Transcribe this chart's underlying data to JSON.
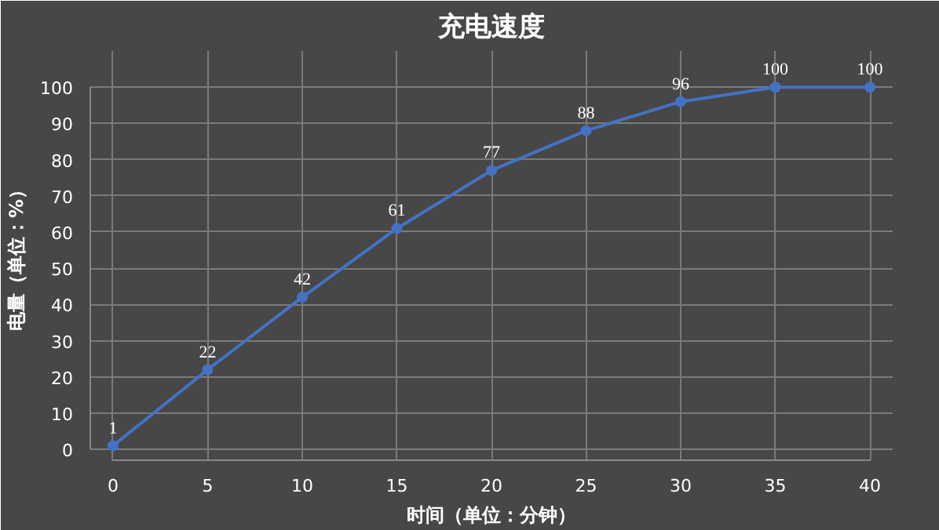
{
  "chart_data": {
    "type": "line",
    "title": "充电速度",
    "xlabel": "时间（单位：分钟）",
    "ylabel": "电量（单位：%）",
    "x": [
      0,
      5,
      10,
      15,
      20,
      25,
      30,
      35,
      40
    ],
    "series": [
      {
        "color": "#4472c4",
        "values": [
          1,
          22,
          42,
          61,
          77,
          88,
          96,
          100,
          100
        ]
      }
    ],
    "xlim": [
      0,
      40
    ],
    "xticks": [
      0,
      5,
      10,
      15,
      20,
      25,
      30,
      35,
      40
    ],
    "ylim": [
      0,
      100
    ],
    "yticks": [
      0,
      10,
      20,
      30,
      40,
      50,
      60,
      70,
      80,
      90,
      100
    ],
    "grid": true,
    "marker": "circle",
    "line_style": "solid",
    "data_labels": true
  }
}
